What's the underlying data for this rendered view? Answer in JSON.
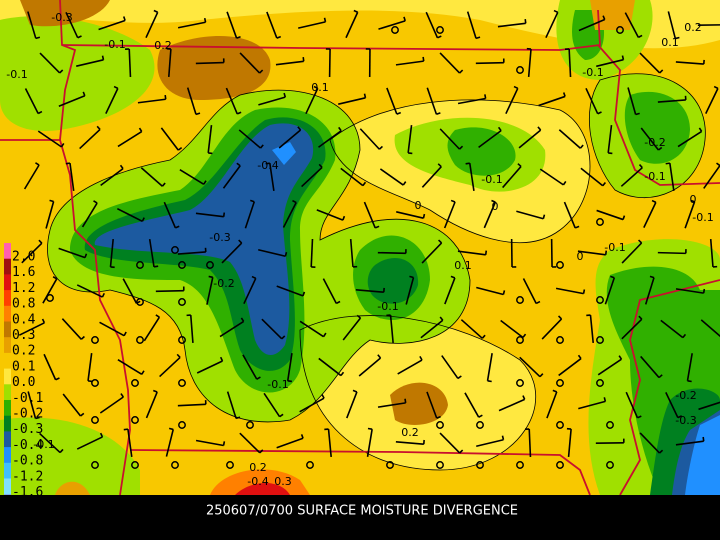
{
  "map": {
    "caption": "250607/0700 SURFACE MOISTURE DIVERGENCE",
    "legend": [
      {
        "label": "2.0",
        "color": "#ff60b0"
      },
      {
        "label": "1.6",
        "color": "#a01010"
      },
      {
        "label": "1.2",
        "color": "#e01010"
      },
      {
        "label": "0.8",
        "color": "#ff4000"
      },
      {
        "label": "0.4",
        "color": "#ff8000"
      },
      {
        "label": "0.3",
        "color": "#c07800"
      },
      {
        "label": "0.2",
        "color": "#e8a000"
      },
      {
        "label": "0.1",
        "color": "#f8c800"
      },
      {
        "label": "0.0",
        "color": "#ffe840"
      },
      {
        "label": "-0.1",
        "color": "#a0e000"
      },
      {
        "label": "-0.2",
        "color": "#30b000"
      },
      {
        "label": "-0.3",
        "color": "#008020"
      },
      {
        "label": "-0.4",
        "color": "#1c5aa0"
      },
      {
        "label": "-0.8",
        "color": "#2090ff"
      },
      {
        "label": "-1.2",
        "color": "#40c0ff"
      },
      {
        "label": "-1.6",
        "color": "#80e0ff"
      }
    ],
    "contour_labels": [
      "-0.3",
      "-0.1",
      "0.2",
      "-0.1",
      "0.1",
      "0.2",
      "0.1",
      "-0.1",
      "-0.4",
      "-0.2",
      "-0.1",
      "-0.1",
      "0",
      "0",
      "0",
      "-0.1",
      "-0.3",
      "-0.1",
      "0",
      "0.1",
      "-0.2",
      "-0.1",
      "-0.1",
      "-0.2",
      "-0.3",
      "0.2",
      "-0.1",
      "0.2",
      "-0.4",
      "0.3"
    ]
  }
}
